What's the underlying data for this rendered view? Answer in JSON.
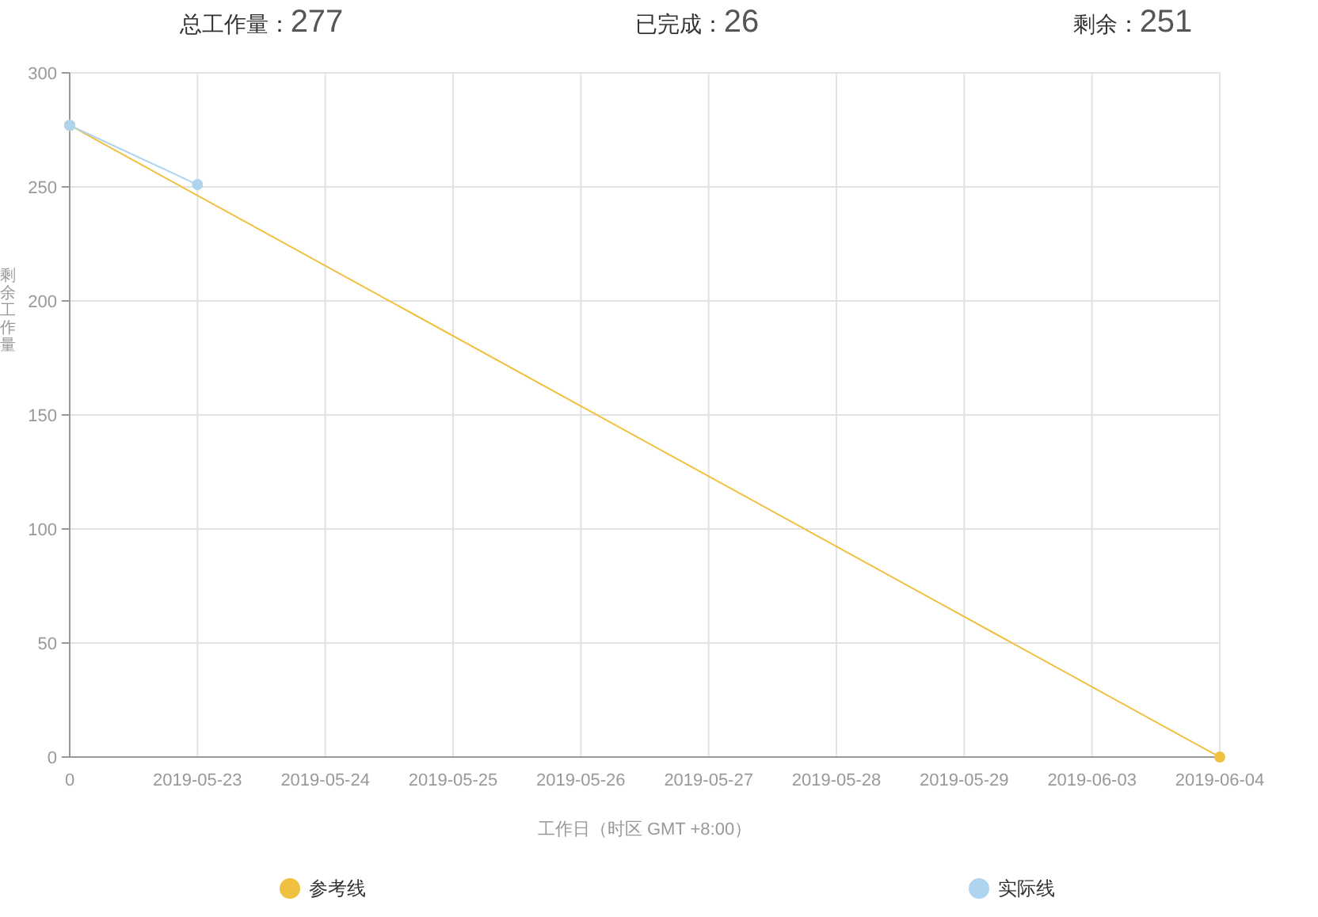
{
  "chart_data": {
    "type": "line",
    "xlabel": "工作日（时区 GMT +8:00）",
    "ylabel": "剩余工作量",
    "annotations": [
      "总工作量：277",
      "已完成：26",
      "剩余：251"
    ],
    "categories": [
      "0",
      "2019-05-23",
      "2019-05-24",
      "2019-05-25",
      "2019-05-26",
      "2019-05-27",
      "2019-05-28",
      "2019-05-29",
      "2019-06-03",
      "2019-06-04"
    ],
    "series": [
      {
        "name": "参考线",
        "color": "#f0c040",
        "values": [
          277,
          null,
          null,
          null,
          null,
          null,
          null,
          null,
          null,
          0
        ]
      },
      {
        "name": "实际线",
        "color": "#aed4f0",
        "values": [
          277,
          251,
          null,
          null,
          null,
          null,
          null,
          null,
          null,
          null
        ]
      }
    ],
    "ylim": [
      0,
      300
    ],
    "yticks": [
      0,
      50,
      100,
      150,
      200,
      250,
      300
    ],
    "grid": true,
    "legend": "bottom",
    "marker": "circle"
  }
}
